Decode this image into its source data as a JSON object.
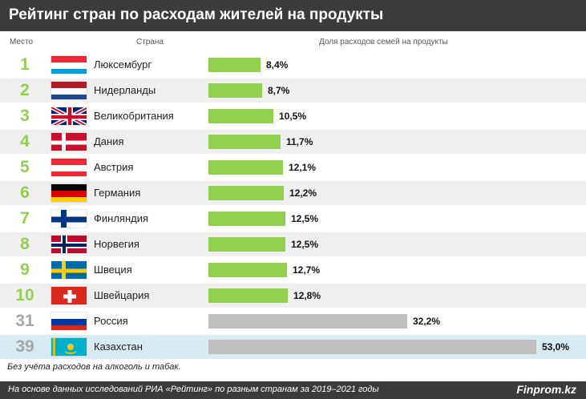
{
  "title": "Рейтинг стран по расходам жителей на продукты",
  "columns": {
    "place": "Место",
    "country": "Страна",
    "share": "Доля расходов семей на продукты"
  },
  "note": "Без учёта расходов на алкоголь и табак.",
  "source": "На основе данных исследований РИА «Рейтинг» по разным странам за 2019–2021 годы",
  "brand": "Finprom.kz",
  "colors": {
    "green": "#92d050",
    "gray": "#bfbfbf",
    "rank_green": "#92d050",
    "rank_gray": "#a6a6a6",
    "highlight": "#d8ebf1"
  },
  "chart_data": {
    "type": "bar",
    "categories": [
      "Люксембург",
      "Нидерланды",
      "Великобритания",
      "Дания",
      "Австрия",
      "Германия",
      "Финляндия",
      "Норвегия",
      "Швеция",
      "Швейцария",
      "Россия",
      "Казахстан"
    ],
    "values": [
      8.4,
      8.7,
      10.5,
      11.7,
      12.1,
      12.2,
      12.5,
      12.5,
      12.7,
      12.8,
      32.2,
      53.0
    ],
    "ranks": [
      "1",
      "2",
      "3",
      "4",
      "5",
      "6",
      "7",
      "8",
      "9",
      "10",
      "31",
      "39"
    ],
    "value_labels": [
      "8,4%",
      "8,7%",
      "10,5%",
      "11,7%",
      "12,1%",
      "12,2%",
      "12,5%",
      "12,5%",
      "12,7%",
      "12,8%",
      "32,2%",
      "53,0%"
    ],
    "flags": [
      "luxembourg-flag",
      "netherlands-flag",
      "uk-flag",
      "denmark-flag",
      "austria-flag",
      "germany-flag",
      "finland-flag",
      "norway-flag",
      "sweden-flag",
      "switzerland-flag",
      "russia-flag",
      "kazakhstan-flag"
    ],
    "xlabel": "",
    "ylabel": "",
    "xlim": [
      0,
      53.0
    ]
  }
}
